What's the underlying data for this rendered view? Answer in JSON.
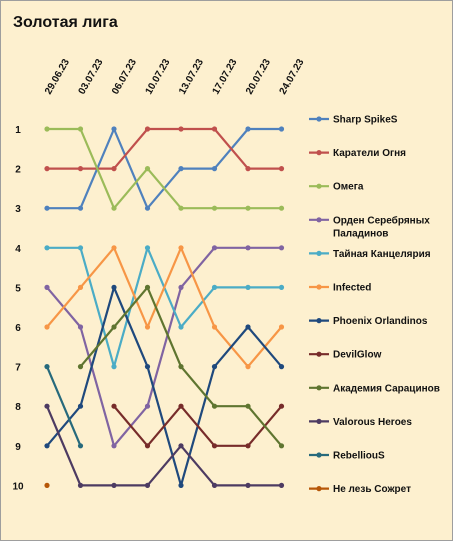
{
  "chart_data": {
    "type": "line",
    "title": "Золотая лига",
    "x": [
      "29.06.23",
      "03.07.23",
      "06.07.23",
      "10.07.23",
      "13.07.23",
      "17.07.23",
      "20.07.23",
      "24.07.23"
    ],
    "y_ticks": [
      "1",
      "2",
      "3",
      "4",
      "5",
      "6",
      "7",
      "8",
      "9",
      "10"
    ],
    "ylim": [
      1,
      10
    ],
    "y_inverted": true,
    "grid": false,
    "legend_position": "right",
    "series": [
      {
        "name": "Sharp SpikeS",
        "color": "#4f81bd",
        "values": [
          3,
          3,
          1,
          3,
          2,
          2,
          1,
          1
        ]
      },
      {
        "name": "Каратели Огня",
        "color": "#c0504d",
        "values": [
          2,
          2,
          2,
          1,
          1,
          1,
          2,
          2
        ]
      },
      {
        "name": "Омега",
        "color": "#9bbb59",
        "values": [
          1,
          1,
          3,
          2,
          3,
          3,
          3,
          3
        ]
      },
      {
        "name_lines": [
          "Орден Серебряных",
          "Паладинов"
        ],
        "color": "#8064a2",
        "values": [
          5,
          6,
          9,
          8,
          5,
          4,
          4,
          4
        ]
      },
      {
        "name": "Тайная Канцелярия",
        "color": "#4bacc6",
        "values": [
          4,
          4,
          7,
          4,
          6,
          5,
          5,
          5
        ]
      },
      {
        "name": "Infected",
        "color": "#f79646",
        "values": [
          6,
          5,
          4,
          6,
          4,
          6,
          7,
          6
        ]
      },
      {
        "name": "Phoenix Orlandinos",
        "color": "#1f497d",
        "values": [
          9,
          8,
          5,
          7,
          10,
          7,
          6,
          7
        ]
      },
      {
        "name": "DevilGlow",
        "color": "#772c2a",
        "values": [
          null,
          null,
          8,
          9,
          8,
          9,
          9,
          8
        ]
      },
      {
        "name": "Академия Сарацинов",
        "color": "#5f7530",
        "values": [
          null,
          7,
          6,
          5,
          7,
          8,
          8,
          9
        ]
      },
      {
        "name": "Valorous Heroes",
        "color": "#4d3b62",
        "values": [
          8,
          10,
          10,
          10,
          9,
          10,
          10,
          10
        ]
      },
      {
        "name": "RebelliouS",
        "color": "#276a7c",
        "values": [
          7,
          9,
          null,
          null,
          null,
          null,
          null,
          null
        ]
      },
      {
        "name": "Не лезь Сожрет",
        "color": "#b65708",
        "values": [
          10,
          null,
          null,
          null,
          null,
          null,
          null,
          null
        ]
      }
    ]
  }
}
